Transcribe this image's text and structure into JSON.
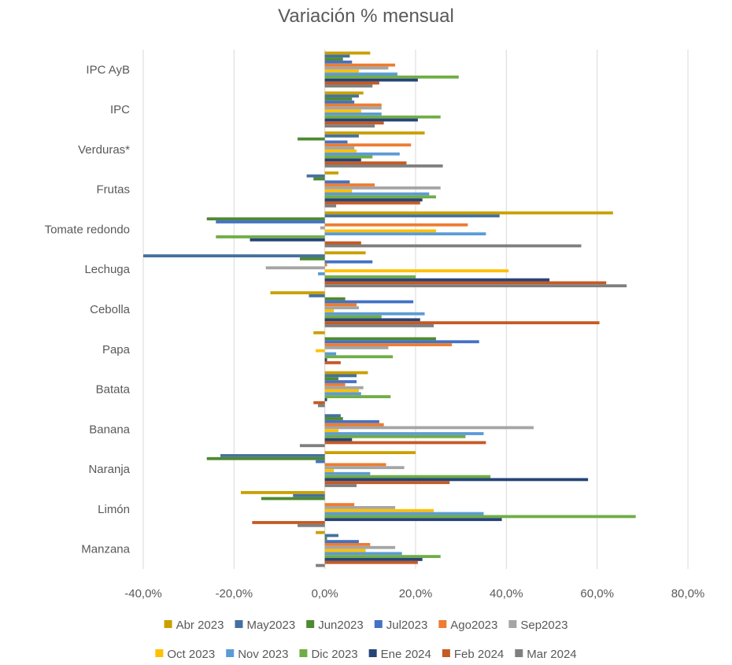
{
  "chart_data": {
    "type": "bar",
    "orientation": "horizontal",
    "title": "Variación % mensual",
    "xlabel": "",
    "ylabel": "",
    "xlim": [
      -40,
      80
    ],
    "xticks": [
      "-40,0%",
      "-20,0%",
      "0,0%",
      "20,0%",
      "40,0%",
      "60,0%",
      "80,0%"
    ],
    "grid": true,
    "legend_position": "bottom",
    "categories": [
      "IPC AyB",
      "IPC",
      "Verduras*",
      "Frutas",
      "Tomate redondo",
      "Lechuga",
      "Cebolla",
      "Papa",
      "Batata",
      "Banana",
      "Naranja",
      "Limón",
      "Manzana"
    ],
    "series": [
      {
        "name": "Abr 2023",
        "color": "#C9A000",
        "values": [
          10,
          8.5,
          22,
          3,
          63.5,
          9,
          -12,
          -2.5,
          9.5,
          0,
          20,
          -18.5,
          -2
        ]
      },
      {
        "name": "May2023",
        "color": "#44719E",
        "values": [
          5.5,
          7.5,
          7.5,
          -4,
          38.5,
          -40,
          -3.5,
          0,
          7,
          3.5,
          -23,
          -7,
          3
        ]
      },
      {
        "name": "Jun2023",
        "color": "#4E8A30",
        "values": [
          4,
          6,
          -6,
          -2.5,
          -26,
          -5.5,
          4.5,
          24.5,
          3,
          4,
          -26,
          -14,
          0.5
        ]
      },
      {
        "name": "Jul2023",
        "color": "#4472C4",
        "values": [
          6,
          6.5,
          5,
          5.5,
          -24,
          10.5,
          19.5,
          34,
          7,
          12,
          -2,
          0,
          7.5
        ]
      },
      {
        "name": "Ago2023",
        "color": "#ED7D31",
        "values": [
          15.5,
          12.5,
          19,
          11,
          31.5,
          0.5,
          7,
          28,
          4.5,
          13,
          13.5,
          6.5,
          10
        ]
      },
      {
        "name": "Sep2023",
        "color": "#A5A5A5",
        "values": [
          14,
          12.5,
          6.5,
          25.5,
          -1,
          -13,
          7.5,
          14,
          8.5,
          46,
          17.5,
          15.5,
          15.5
        ]
      },
      {
        "name": "Oct 2023",
        "color": "#FFC000",
        "values": [
          7.5,
          8,
          7,
          6,
          24.5,
          40.5,
          2,
          -2,
          7.5,
          3,
          2,
          24,
          9
        ]
      },
      {
        "name": "Nov 2023",
        "color": "#5B9BD5",
        "values": [
          16,
          12.5,
          16.5,
          23,
          35.5,
          -1.5,
          22,
          2.5,
          8,
          35,
          10,
          35,
          17
        ]
      },
      {
        "name": "Dic 2023",
        "color": "#70AD47",
        "values": [
          29.5,
          25.5,
          10.5,
          24.5,
          -24,
          20,
          12.5,
          15,
          14.5,
          31,
          36.5,
          68.5,
          25.5
        ]
      },
      {
        "name": "Ene 2024",
        "color": "#264478",
        "values": [
          20.5,
          20.5,
          8,
          21.5,
          -16.5,
          49.5,
          21,
          0.5,
          0.5,
          6,
          58,
          39,
          21.5
        ]
      },
      {
        "name": "Feb 2024",
        "color": "#C55A24",
        "values": [
          12,
          13,
          18,
          21,
          8,
          62,
          60.5,
          3.5,
          -2.5,
          35.5,
          27.5,
          -16,
          20.5
        ]
      },
      {
        "name": "Mar 2024",
        "color": "#7F7F7F",
        "values": [
          10.5,
          11,
          26,
          2.5,
          56.5,
          66.5,
          24,
          0,
          -1.5,
          -5.5,
          7,
          -6,
          -2
        ]
      }
    ]
  }
}
